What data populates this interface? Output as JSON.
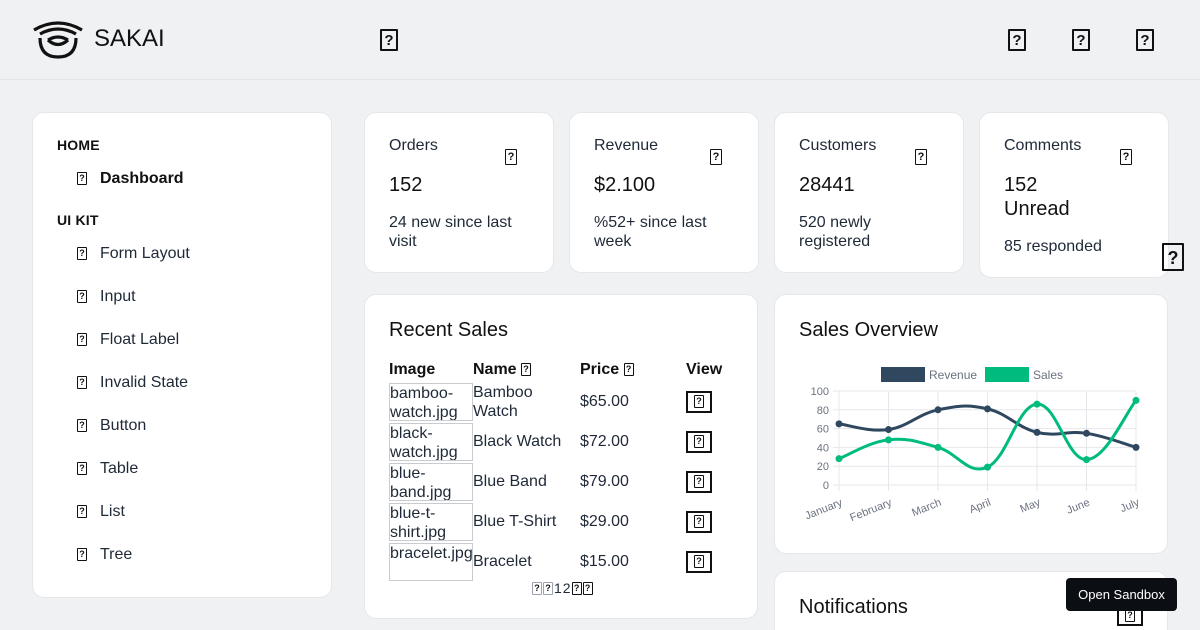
{
  "app": {
    "name": "SAKAI"
  },
  "topbar": {
    "icons": [
      "menu-icon",
      "calendar-icon",
      "user-icon",
      "settings-icon"
    ]
  },
  "sidebar": {
    "sections": [
      {
        "title": "HOME",
        "items": [
          {
            "label": "Dashboard",
            "active": true
          }
        ]
      },
      {
        "title": "UI KIT",
        "items": [
          {
            "label": "Form Layout"
          },
          {
            "label": "Input"
          },
          {
            "label": "Float Label"
          },
          {
            "label": "Invalid State"
          },
          {
            "label": "Button"
          },
          {
            "label": "Table"
          },
          {
            "label": "List"
          },
          {
            "label": "Tree"
          }
        ]
      }
    ]
  },
  "stats": [
    {
      "label": "Orders",
      "value": "152",
      "sub": "24 new since last visit"
    },
    {
      "label": "Revenue",
      "value": "$2.100",
      "sub": "%52+ since last week"
    },
    {
      "label": "Customers",
      "value": "28441",
      "sub": "520 newly registered"
    },
    {
      "label": "Comments",
      "value": "152 Unread",
      "sub": "85 responded"
    }
  ],
  "recent_sales": {
    "title": "Recent Sales",
    "columns": {
      "image": "Image",
      "name": "Name",
      "price": "Price",
      "view": "View"
    },
    "rows": [
      {
        "image_alt": "bamboo-watch.jpg",
        "name": "Bamboo Watch",
        "price": "$65.00"
      },
      {
        "image_alt": "black-watch.jpg",
        "name": "Black Watch",
        "price": "$72.00"
      },
      {
        "image_alt": "blue-band.jpg",
        "name": "Blue Band",
        "price": "$79.00"
      },
      {
        "image_alt": "blue-t-shirt.jpg",
        "name": "Blue T-Shirt",
        "price": "$29.00"
      },
      {
        "image_alt": "bracelet.jpg",
        "name": "Bracelet",
        "price": "$15.00"
      }
    ],
    "pager": {
      "page1": "1",
      "page2": "2"
    }
  },
  "sales_overview": {
    "title": "Sales Overview"
  },
  "notifications": {
    "title": "Notifications"
  },
  "sandbox": {
    "label": "Open Sandbox"
  },
  "chart_data": {
    "type": "line",
    "categories": [
      "January",
      "February",
      "March",
      "April",
      "May",
      "June",
      "July"
    ],
    "series": [
      {
        "name": "Revenue",
        "color": "#2f4860",
        "values": [
          65,
          59,
          80,
          81,
          56,
          55,
          40
        ]
      },
      {
        "name": "Sales",
        "color": "#00bb7e",
        "values": [
          28,
          48,
          40,
          19,
          86,
          27,
          90
        ]
      }
    ],
    "ylim": [
      0,
      100
    ],
    "yticks": [
      "0",
      "20",
      "40",
      "60",
      "80",
      "100"
    ],
    "legend": "top",
    "grid": true
  }
}
